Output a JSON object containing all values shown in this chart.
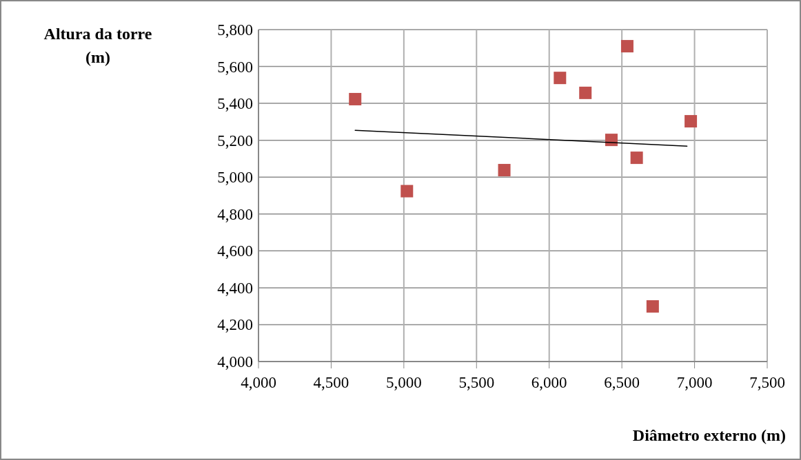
{
  "chart_data": {
    "type": "scatter",
    "xlabel": "Diâmetro externo (m)",
    "ylabel": "Altura da torre (m)",
    "grid": true,
    "xlim": [
      4000,
      7500
    ],
    "ylim": [
      4000,
      5800
    ],
    "xticks": [
      {
        "value": 4000,
        "label": "4,000"
      },
      {
        "value": 4500,
        "label": "4,500"
      },
      {
        "value": 5000,
        "label": "5,000"
      },
      {
        "value": 5500,
        "label": "5,500"
      },
      {
        "value": 6000,
        "label": "6,000"
      },
      {
        "value": 6500,
        "label": "6,500"
      },
      {
        "value": 7000,
        "label": "7,000"
      },
      {
        "value": 7500,
        "label": "7,500"
      }
    ],
    "yticks": [
      {
        "value": 4000,
        "label": "4,000"
      },
      {
        "value": 4200,
        "label": "4,200"
      },
      {
        "value": 4400,
        "label": "4,400"
      },
      {
        "value": 4600,
        "label": "4,600"
      },
      {
        "value": 4800,
        "label": "4,800"
      },
      {
        "value": 5000,
        "label": "5,000"
      },
      {
        "value": 5200,
        "label": "5,200"
      },
      {
        "value": 5400,
        "label": "5,400"
      },
      {
        "value": 5600,
        "label": "5,600"
      },
      {
        "value": 5800,
        "label": "5,800"
      }
    ],
    "series": [
      {
        "color": "#c0504d",
        "marker": "square",
        "x": [
          4665,
          5021,
          5691,
          6074,
          6249,
          6537,
          6428,
          6602,
          6974,
          6712
        ],
        "values": [
          5423,
          4924,
          5038,
          5538,
          5457,
          5710,
          5202,
          5105,
          5303,
          4299
        ]
      },
      {
        "type": "line",
        "color": "#000000",
        "x": [
          4665,
          6948
        ],
        "values": [
          5254,
          5168
        ]
      }
    ]
  }
}
